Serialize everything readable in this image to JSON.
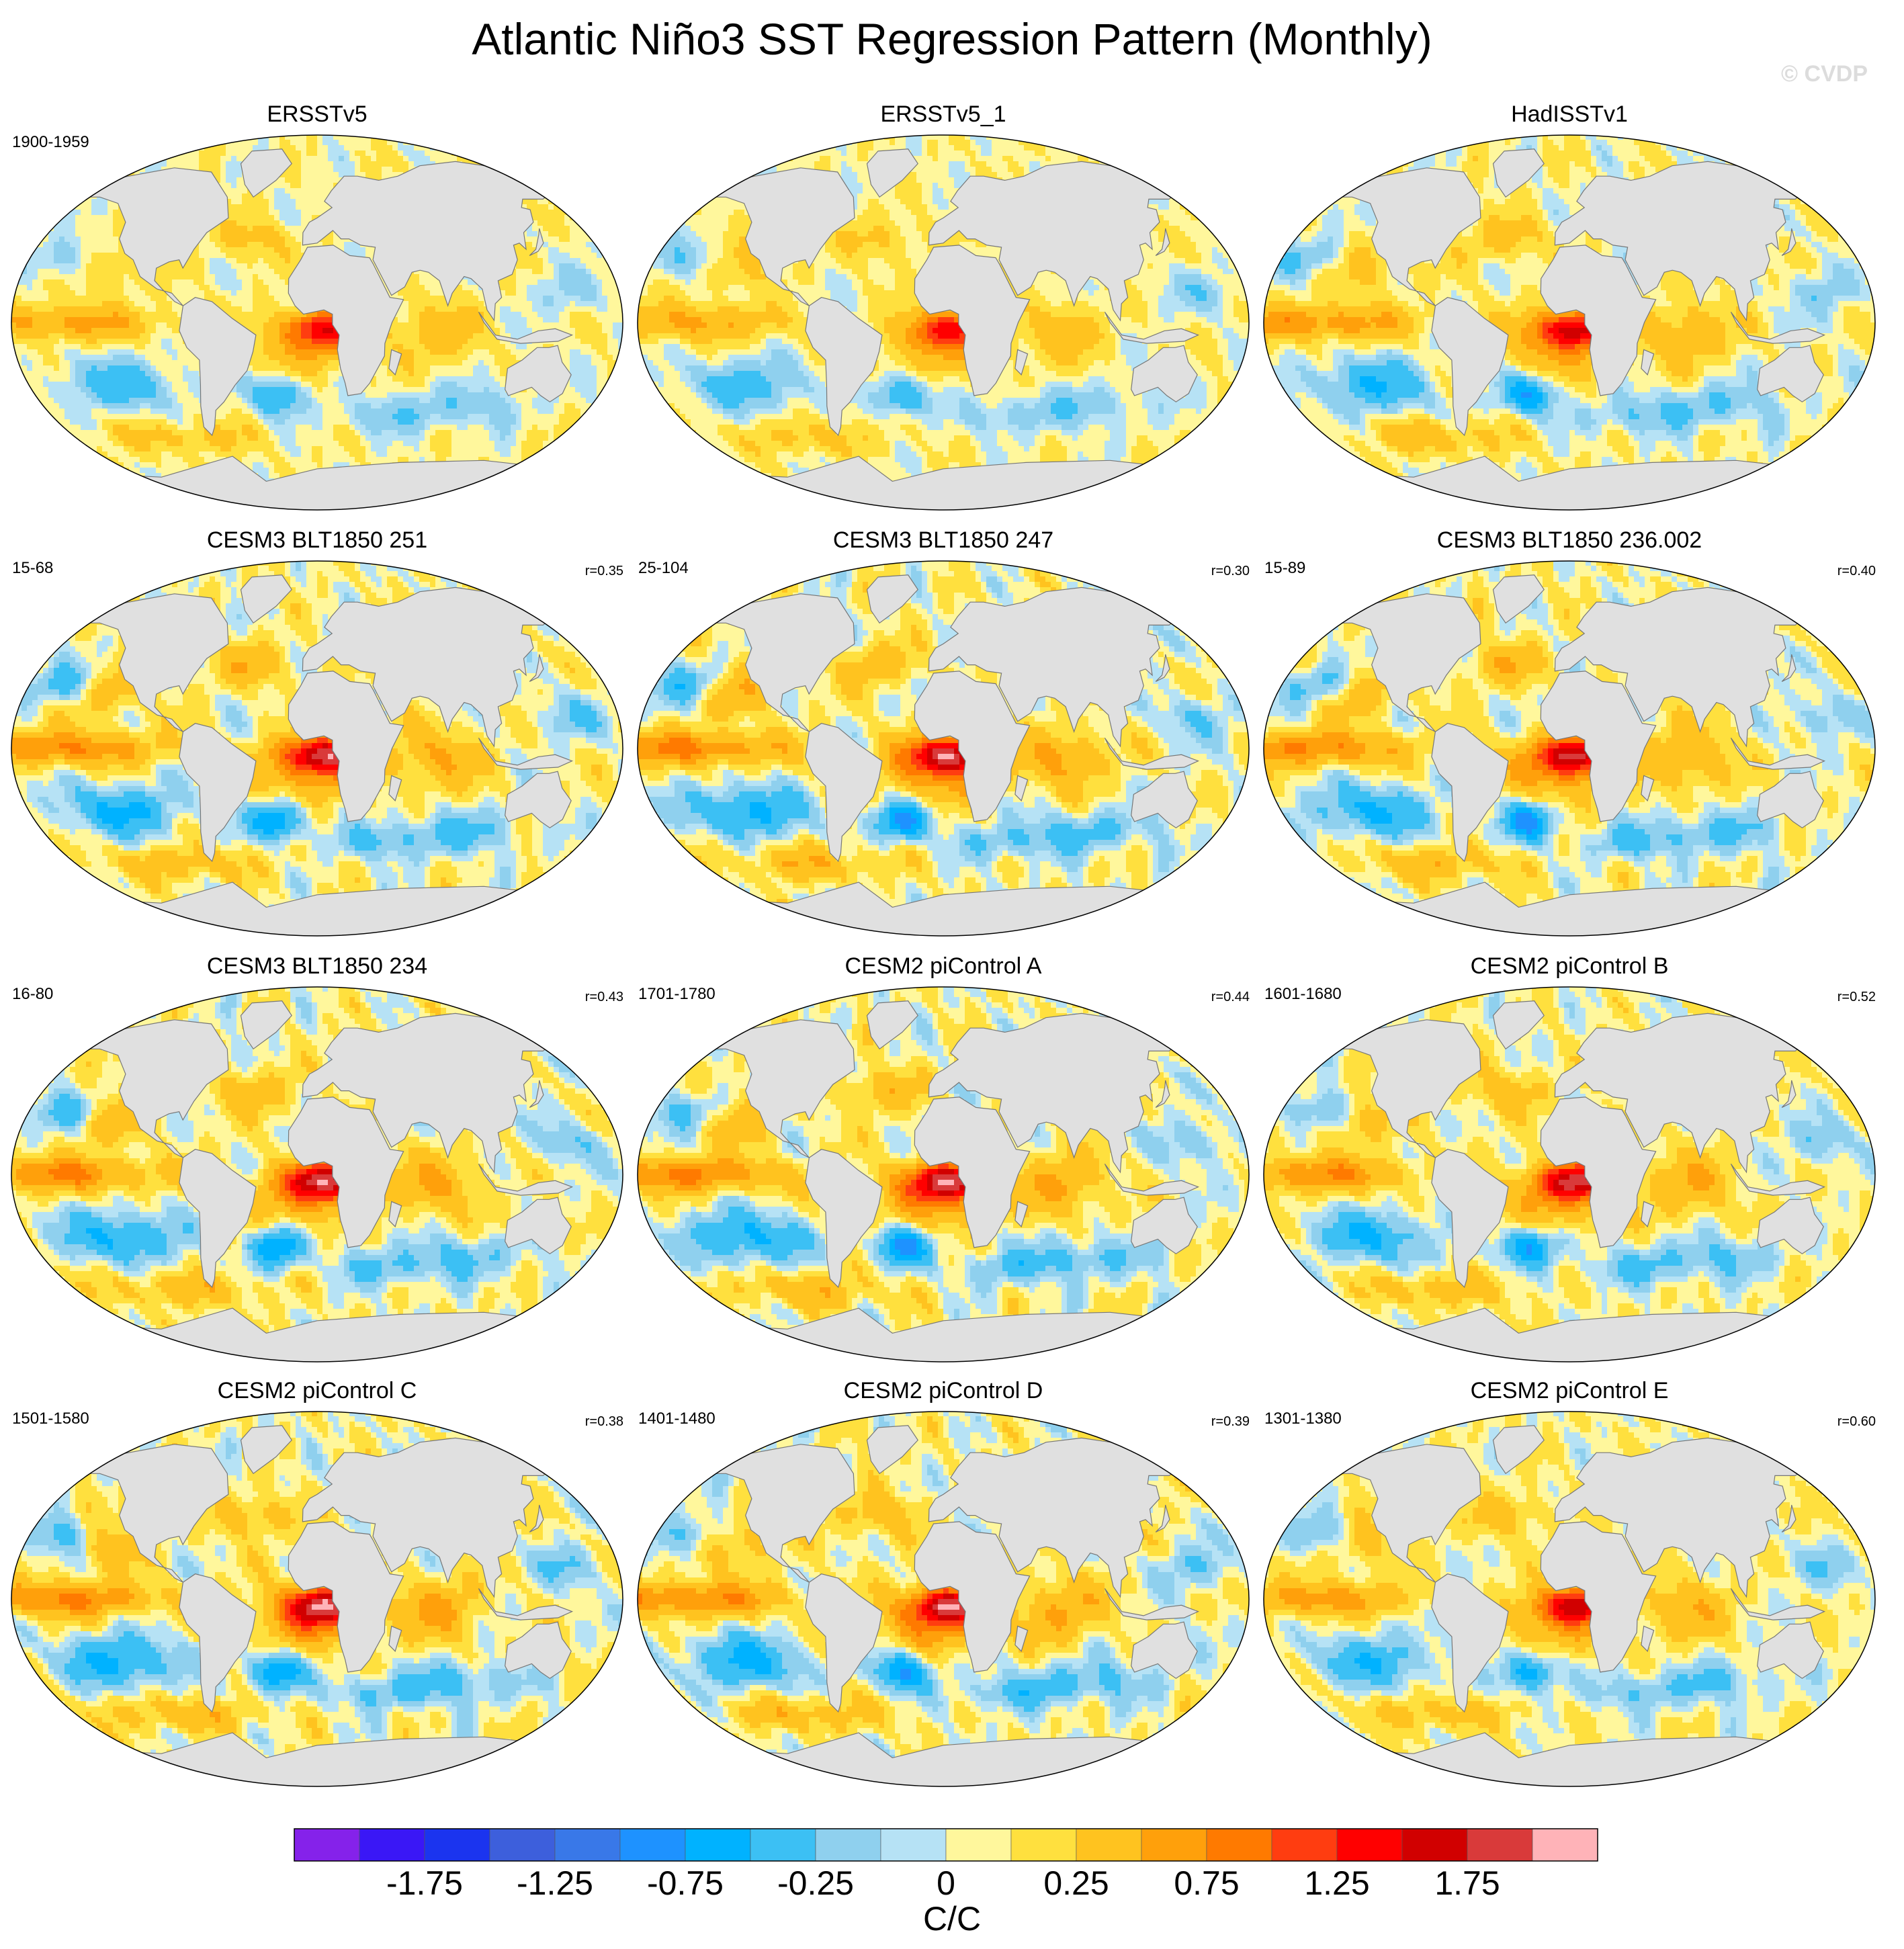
{
  "title": "Atlantic Niño3 SST Regression Pattern (Monthly)",
  "watermark": "© CVDP",
  "chart_data": {
    "type": "heatmap",
    "layout": "4 rows × 3 columns of global maps",
    "projection": "Robinson",
    "land_color": "#e0e0e0",
    "panels": [
      {
        "title": "ERSSTv5",
        "period": "1900-1959",
        "r": "",
        "pattern_strength": 0.75
      },
      {
        "title": "ERSSTv5_1",
        "period": "",
        "r": "",
        "pattern_strength": 0.7
      },
      {
        "title": "HadISSTv1",
        "period": "",
        "r": "",
        "pattern_strength": 0.9
      },
      {
        "title": "CESM3 BLT1850 251",
        "period": "15-68",
        "r": "r=0.35",
        "pattern_strength": 1.0
      },
      {
        "title": "CESM3 BLT1850 247",
        "period": "25-104",
        "r": "r=0.30",
        "pattern_strength": 1.05
      },
      {
        "title": "CESM3 BLT1850 236.002",
        "period": "15-89",
        "r": "r=0.40",
        "pattern_strength": 1.0
      },
      {
        "title": "CESM3 BLT1850 234",
        "period": "16-80",
        "r": "r=0.43",
        "pattern_strength": 1.0
      },
      {
        "title": "CESM2 piControl A",
        "period": "1701-1780",
        "r": "r=0.44",
        "pattern_strength": 1.05
      },
      {
        "title": "CESM2 piControl B",
        "period": "1601-1680",
        "r": "r=0.52",
        "pattern_strength": 0.95
      },
      {
        "title": "CESM2 piControl C",
        "period": "1501-1580",
        "r": "r=0.38",
        "pattern_strength": 1.05
      },
      {
        "title": "CESM2 piControl D",
        "period": "1401-1480",
        "r": "r=0.39",
        "pattern_strength": 1.05
      },
      {
        "title": "CESM2 piControl E",
        "period": "1301-1380",
        "r": "r=0.60",
        "pattern_strength": 0.85
      }
    ],
    "colorbar": {
      "colors": [
        "#8522ea",
        "#3a17f6",
        "#1b34ef",
        "#3d5fdc",
        "#3978e8",
        "#1e92ff",
        "#00b2ff",
        "#3cc0f4",
        "#8fd0ee",
        "#b6e2f5",
        "#fff79c",
        "#ffe03e",
        "#ffc31f",
        "#ffa00b",
        "#ff7a00",
        "#ff3d10",
        "#ff0000",
        "#d10000",
        "#d93a3a",
        "#ffb3b8"
      ],
      "tick_labels": [
        "-1.75",
        "-1.25",
        "-0.75",
        "-0.25",
        "0",
        "0.25",
        "0.75",
        "1.25",
        "1.75"
      ],
      "unit": "C/C",
      "levels": [
        -2.0,
        -1.75,
        -1.5,
        -1.25,
        -1.0,
        -0.75,
        -0.5,
        -0.25,
        -0.1,
        0,
        0.1,
        0.25,
        0.5,
        0.75,
        1.0,
        1.25,
        1.5,
        1.75,
        2.0
      ]
    }
  }
}
